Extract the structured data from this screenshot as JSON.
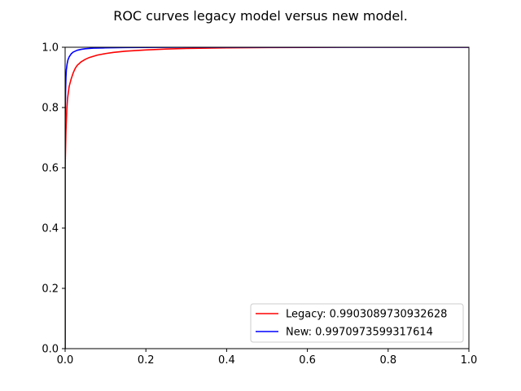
{
  "chart_data": {
    "type": "line",
    "title": "ROC curves legacy model versus new model.",
    "xlabel": "",
    "ylabel": "",
    "xlim": [
      0.0,
      1.0
    ],
    "ylim": [
      0.0,
      1.0
    ],
    "grid": false,
    "legend_position": "bottom-right",
    "x_ticks": [
      {
        "value": 0.0,
        "label": "0.0"
      },
      {
        "value": 0.2,
        "label": "0.2"
      },
      {
        "value": 0.4,
        "label": "0.4"
      },
      {
        "value": 0.6,
        "label": "0.6"
      },
      {
        "value": 0.8,
        "label": "0.8"
      },
      {
        "value": 1.0,
        "label": "1.0"
      }
    ],
    "y_ticks": [
      {
        "value": 0.0,
        "label": "0.0"
      },
      {
        "value": 0.2,
        "label": "0.2"
      },
      {
        "value": 0.4,
        "label": "0.4"
      },
      {
        "value": 0.6,
        "label": "0.6"
      },
      {
        "value": 0.8,
        "label": "0.8"
      },
      {
        "value": 1.0,
        "label": "1.0"
      }
    ],
    "series": [
      {
        "name": "Legacy: 0.9903089730932628",
        "color": "#ff0000",
        "x": [
          0.0,
          0.0,
          0.002,
          0.004,
          0.006,
          0.008,
          0.01,
          0.015,
          0.02,
          0.025,
          0.03,
          0.04,
          0.05,
          0.06,
          0.08,
          0.1,
          0.12,
          0.15,
          0.2,
          0.25,
          0.3,
          0.4,
          0.5,
          0.6,
          0.7,
          0.8,
          0.9,
          1.0
        ],
        "y": [
          0.0,
          0.6,
          0.72,
          0.79,
          0.83,
          0.85,
          0.87,
          0.895,
          0.915,
          0.93,
          0.94,
          0.952,
          0.96,
          0.966,
          0.974,
          0.979,
          0.983,
          0.987,
          0.991,
          0.994,
          0.996,
          0.998,
          0.999,
          0.9995,
          1.0,
          1.0,
          1.0,
          1.0
        ]
      },
      {
        "name": "New: 0.9970973599317614",
        "color": "#0000ff",
        "x": [
          0.0,
          0.0,
          0.001,
          0.002,
          0.003,
          0.005,
          0.007,
          0.01,
          0.015,
          0.02,
          0.03,
          0.04,
          0.05,
          0.07,
          0.1,
          0.15,
          0.2,
          0.3,
          0.4,
          0.6,
          0.8,
          1.0
        ],
        "y": [
          0.0,
          0.75,
          0.85,
          0.9,
          0.925,
          0.945,
          0.958,
          0.968,
          0.978,
          0.984,
          0.99,
          0.993,
          0.995,
          0.997,
          0.998,
          0.999,
          0.9995,
          1.0,
          1.0,
          1.0,
          1.0,
          1.0
        ]
      }
    ]
  }
}
